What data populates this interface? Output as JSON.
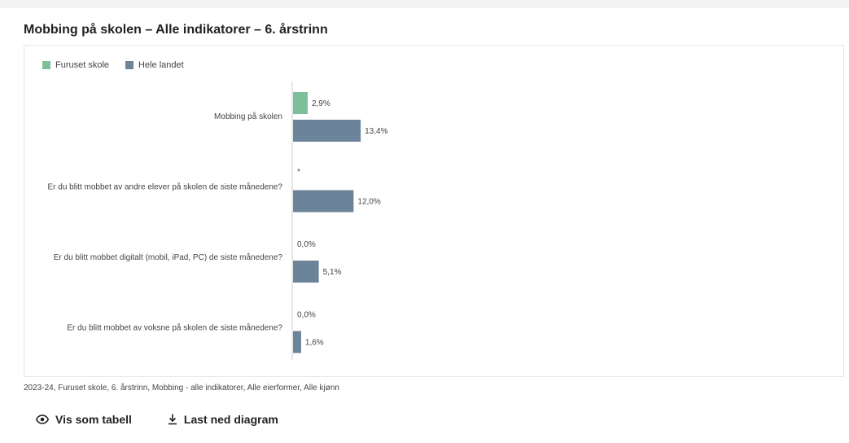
{
  "title": "Mobbing på skolen – Alle indikatorer – 6. årstrinn",
  "caption": "2023-24, Furuset skole, 6. årstrinn, Mobbing - alle indikatorer, Alle eierformer, Alle kjønn",
  "actions": {
    "show_table": "Vis som tabell",
    "download": "Last ned diagram"
  },
  "chart_data": {
    "type": "bar",
    "orientation": "horizontal",
    "legend_position": "top-left",
    "grid": false,
    "xlim": [
      0,
      100
    ],
    "categories": [
      "Mobbing på skolen",
      "Er du blitt mobbet av andre elever på skolen de siste månedene?",
      "Er du blitt mobbet digitalt (mobil, iPad, PC) de siste månedene?",
      "Er du blitt mobbet av voksne på skolen de siste månedene?"
    ],
    "series": [
      {
        "name": "Furuset skole",
        "color": "#7dbf9b",
        "values": [
          2.9,
          null,
          0.0,
          0.0
        ],
        "labels": [
          "2,9%",
          "*",
          "0,0%",
          "0,0%"
        ]
      },
      {
        "name": "Hele landet",
        "color": "#6c8499",
        "values": [
          13.4,
          12.0,
          5.1,
          1.6
        ],
        "labels": [
          "13,4%",
          "12,0%",
          "5,1%",
          "1,6%"
        ]
      }
    ]
  }
}
